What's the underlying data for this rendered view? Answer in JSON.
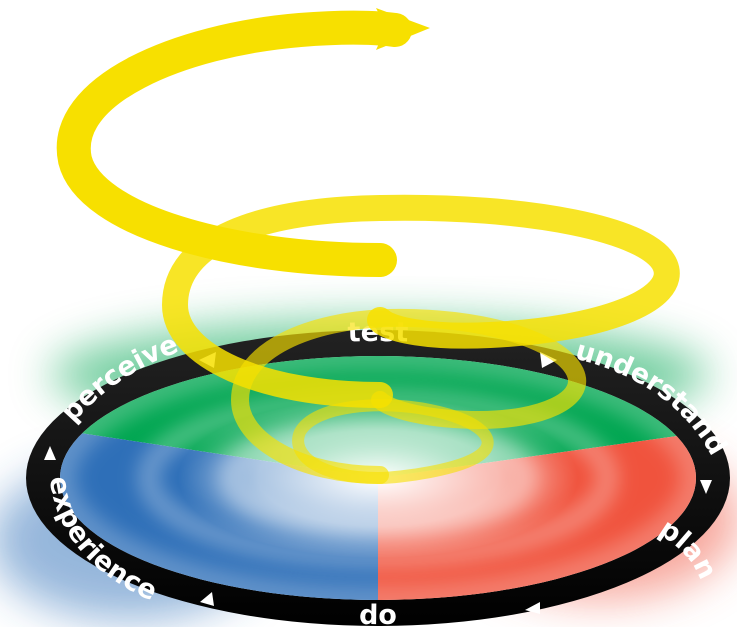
{
  "cycle": {
    "stages": [
      {
        "key": "test",
        "label": "test"
      },
      {
        "key": "understand",
        "label": "understand"
      },
      {
        "key": "plan",
        "label": "plan"
      },
      {
        "key": "do",
        "label": "do"
      },
      {
        "key": "experience",
        "label": "experience"
      },
      {
        "key": "perceive",
        "label": "perceive"
      }
    ]
  },
  "colors": {
    "spiral": "#f7e000",
    "ring": "#111111",
    "green": "#00a651",
    "red": "#f0533d",
    "blue": "#2e6fb8",
    "ring_text": "#ffffff",
    "arrow": "#ffffff"
  }
}
